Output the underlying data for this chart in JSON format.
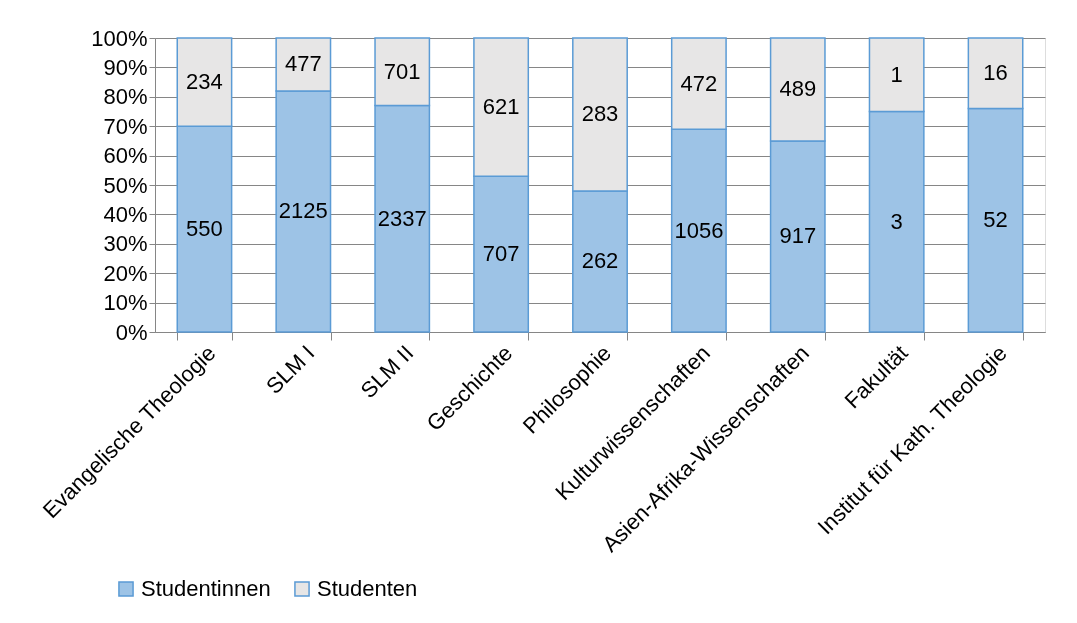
{
  "chart_data": {
    "type": "bar",
    "stacked": true,
    "categories": [
      "Evangelische Theologie",
      "SLM I",
      "SLM II",
      "Geschichte",
      "Philosophie",
      "Kulturwissenschaften",
      "Asien-Afrika-Wissenschaften",
      "Fakultät",
      "Institut für Kath. Theologie"
    ],
    "series": [
      {
        "name": "Studentinnen",
        "color": "#9dc3e6",
        "values": [
          70,
          82,
          77,
          53,
          48,
          69,
          65,
          75,
          76
        ]
      },
      {
        "name": "Studenten",
        "color": "#e7e6e6",
        "values": [
          30,
          18,
          23,
          47,
          52,
          31,
          35,
          25,
          24
        ]
      }
    ],
    "annotations": [
      {
        "text": "550",
        "x": "Evangelische Theologie",
        "y": 35
      },
      {
        "text": "2125",
        "x": "SLM I",
        "y": 41
      },
      {
        "text": "2337",
        "x": "SLM II",
        "y": 38.5
      },
      {
        "text": "707",
        "x": "Geschichte",
        "y": 26.5
      },
      {
        "text": "262",
        "x": "Philosophie",
        "y": 24
      },
      {
        "text": "1056",
        "x": "Kulturwissenschaften",
        "y": 34.5
      },
      {
        "text": "917",
        "x": "Asien-Afrika-Wissenschaften",
        "y": 32.5
      },
      {
        "text": "3",
        "x": "Fakultät",
        "y": 37.5
      },
      {
        "text": "52",
        "x": "Institut für Kath. Theologie",
        "y": 38
      },
      {
        "text": "234",
        "x": "Evangelische Theologie",
        "y": 85
      },
      {
        "text": "477",
        "x": "SLM I",
        "y": 91
      },
      {
        "text": "701",
        "x": "SLM II",
        "y": 88.5
      },
      {
        "text": "621",
        "x": "Geschichte",
        "y": 76.5
      },
      {
        "text": "283",
        "x": "Philosophie",
        "y": 74
      },
      {
        "text": "472",
        "x": "Kulturwissenschaften",
        "y": 84.5
      },
      {
        "text": "489",
        "x": "Asien-Afrika-Wissenschaften",
        "y": 82.5
      },
      {
        "text": "1",
        "x": "Fakultät",
        "y": 87.5
      },
      {
        "text": "16",
        "x": "Institut für Kath. Theologie",
        "y": 88
      }
    ],
    "ylim": [
      0,
      100
    ],
    "yticks": [
      {
        "value": 0,
        "label": "0%"
      },
      {
        "value": 10,
        "label": "10%"
      },
      {
        "value": 20,
        "label": "20%"
      },
      {
        "value": 30,
        "label": "30%"
      },
      {
        "value": 40,
        "label": "40%"
      },
      {
        "value": 50,
        "label": "50%"
      },
      {
        "value": 60,
        "label": "60%"
      },
      {
        "value": 70,
        "label": "70%"
      },
      {
        "value": 80,
        "label": "80%"
      },
      {
        "value": 90,
        "label": "90%"
      },
      {
        "value": 100,
        "label": "100%"
      }
    ],
    "grid": "y",
    "legend": "bottom left"
  }
}
